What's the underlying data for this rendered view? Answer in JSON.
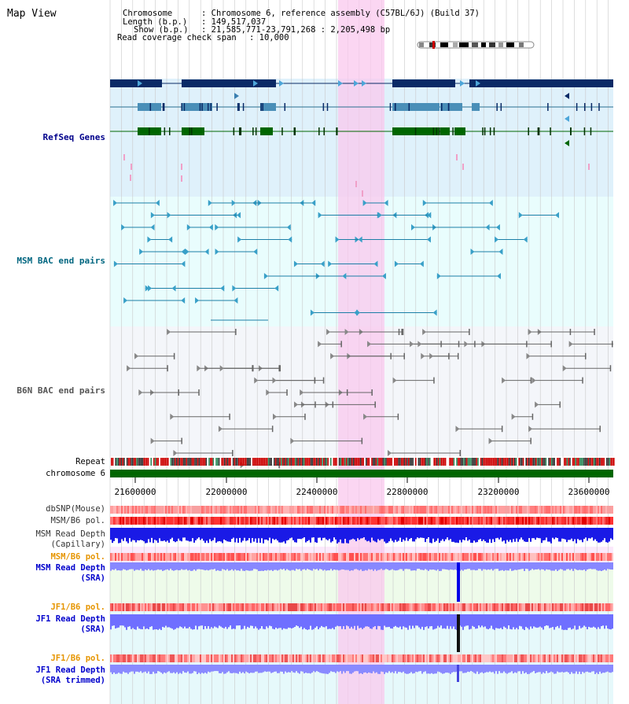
{
  "app": {
    "title": "Map View"
  },
  "info": {
    "chromosome_label": "Chromosome",
    "chromosome_value": ": Chromosome 6, reference assembly (C57BL/6J) (Build 37)",
    "length_label": "Length (b.p.)",
    "length_value": ": 149,517,037",
    "show_label": "Show (b.p.)",
    "show_value": ": 21,585,771-23,791,268 : 2,205,498 bp",
    "coverage_label": "Read coverage check span",
    "coverage_value": ": 10,000"
  },
  "tracks": {
    "refseq": "RefSeq Genes",
    "msm_bac": "MSM BAC end pairs",
    "b6n_bac": "B6N BAC end pairs",
    "repeat": "Repeat",
    "chromosome": "chromosome 6",
    "dbsnp": "dbSNP(Mouse)",
    "msm_b6_pol": "MSM/B6 pol.",
    "msm_read_cap_1": "MSM Read Depth",
    "msm_read_cap_2": "(Capillary)",
    "msm_b6_pol_2": "MSM/B6 pol.",
    "msm_read_sra_1": "MSM Read Depth",
    "msm_read_sra_2": "(SRA)",
    "jf1_b6_pol": "JF1/B6 pol.",
    "jf1_read_sra_1": "JF1 Read Depth",
    "jf1_read_sra_2": "(SRA)",
    "jf1_b6_pol_2": "JF1/B6 pol.",
    "jf1_read_trim_1": "JF1 Read Depth",
    "jf1_read_trim_2": "(SRA trimmed)"
  },
  "axis": {
    "ticks": [
      "21600000",
      "22000000",
      "22400000",
      "22800000",
      "23200000",
      "23600000"
    ]
  },
  "colors": {
    "refseq_bg": "#dff1fb",
    "bac_bg": "#e9fdfd",
    "b6n_bg": "#f2f6fb",
    "highlight": "#f9d6f1",
    "label_blue": "#00008b",
    "label_teal": "#006680",
    "label_orange": "#e69500",
    "label_navy": "#0000cc",
    "gene_navy": "#0a2a66",
    "gene_steel": "#4a8fb8",
    "gene_green": "#006600"
  }
}
